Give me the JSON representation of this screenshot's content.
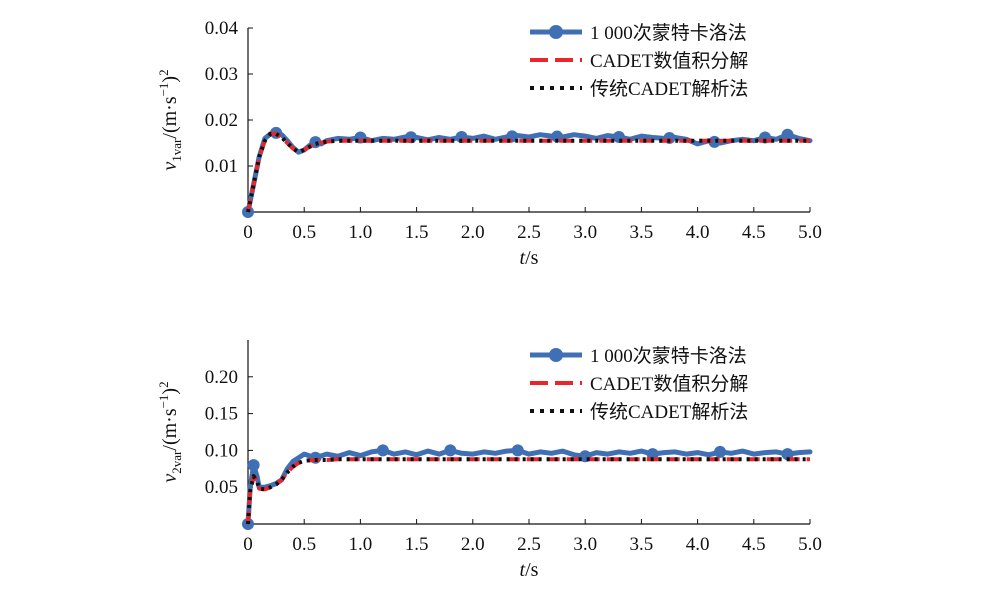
{
  "colors": {
    "monte_carlo": "#3f6fb5",
    "cadet_numeric": "#e8262c",
    "cadet_analytic": "#111111",
    "axis": "#111111"
  },
  "chart_data": [
    {
      "type": "line",
      "xlabel": {
        "italic": "t",
        "rest": "/s"
      },
      "ylabel": {
        "var": "v",
        "sub": "1var",
        "unit": "/(m·s",
        "sup": "−1",
        "close": ")",
        "sup2": "2"
      },
      "xlim": [
        0,
        5
      ],
      "ylim": [
        0,
        0.04
      ],
      "xticks": [
        0,
        0.5,
        1.0,
        1.5,
        2.0,
        2.5,
        3.0,
        3.5,
        4.0,
        4.5,
        5.0
      ],
      "xtick_labels": [
        "0",
        "0.5",
        "1.0",
        "1.5",
        "2.0",
        "2.5",
        "3.0",
        "3.5",
        "4.0",
        "4.5",
        "5.0"
      ],
      "yticks": [
        0.01,
        0.02,
        0.03,
        0.04
      ],
      "ytick_labels": [
        "0.01",
        "0.02",
        "0.03",
        "0.04"
      ],
      "legend": "top-right",
      "grid": false,
      "series": [
        {
          "name": "1 000次蒙特卡洛法",
          "style": "line-marker",
          "x": [
            0,
            0.05,
            0.1,
            0.15,
            0.2,
            0.25,
            0.3,
            0.35,
            0.4,
            0.45,
            0.5,
            0.55,
            0.6,
            0.65,
            0.7,
            0.8,
            0.9,
            1.0,
            1.1,
            1.2,
            1.3,
            1.4,
            1.5,
            1.6,
            1.7,
            1.8,
            1.9,
            2.0,
            2.1,
            2.2,
            2.3,
            2.4,
            2.5,
            2.6,
            2.7,
            2.8,
            2.9,
            3.0,
            3.1,
            3.2,
            3.3,
            3.4,
            3.5,
            3.6,
            3.7,
            3.8,
            3.9,
            4.0,
            4.1,
            4.2,
            4.3,
            4.4,
            4.5,
            4.6,
            4.7,
            4.8,
            4.9,
            5.0
          ],
          "y": [
            0,
            0.006,
            0.012,
            0.016,
            0.017,
            0.0172,
            0.0168,
            0.0155,
            0.014,
            0.013,
            0.0135,
            0.0145,
            0.0152,
            0.0148,
            0.0155,
            0.016,
            0.0158,
            0.0162,
            0.0155,
            0.016,
            0.0158,
            0.0163,
            0.0162,
            0.0157,
            0.0162,
            0.0158,
            0.0163,
            0.016,
            0.0165,
            0.0158,
            0.0163,
            0.0166,
            0.0163,
            0.0168,
            0.0165,
            0.0163,
            0.0168,
            0.0165,
            0.016,
            0.0166,
            0.0163,
            0.0158,
            0.0165,
            0.0162,
            0.016,
            0.0162,
            0.0158,
            0.0148,
            0.0155,
            0.015,
            0.0155,
            0.0158,
            0.0155,
            0.0162,
            0.0158,
            0.0168,
            0.016,
            0.0155
          ],
          "markers_x": [
            0,
            0.25,
            0.6,
            1.0,
            1.45,
            1.9,
            2.35,
            2.75,
            3.3,
            3.75,
            4.15,
            4.6,
            4.8
          ]
        },
        {
          "name": "CADET数值积分解",
          "style": "dashed",
          "x": [
            0,
            0.05,
            0.1,
            0.15,
            0.2,
            0.25,
            0.3,
            0.35,
            0.4,
            0.45,
            0.5,
            0.55,
            0.6,
            0.7,
            0.8,
            0.9,
            1.0,
            1.2,
            1.5,
            2.0,
            3.0,
            4.0,
            5.0
          ],
          "y": [
            0,
            0.006,
            0.012,
            0.0155,
            0.017,
            0.017,
            0.0162,
            0.015,
            0.0138,
            0.013,
            0.0135,
            0.0142,
            0.0148,
            0.0153,
            0.0155,
            0.0155,
            0.0155,
            0.0155,
            0.0155,
            0.0155,
            0.0155,
            0.0155,
            0.0155
          ]
        },
        {
          "name": "传统CADET解析法",
          "style": "dotted",
          "x": [
            0,
            0.05,
            0.1,
            0.15,
            0.2,
            0.25,
            0.3,
            0.35,
            0.4,
            0.45,
            0.5,
            0.55,
            0.6,
            0.7,
            0.8,
            0.9,
            1.0,
            1.2,
            1.5,
            2.0,
            3.0,
            4.0,
            5.0
          ],
          "y": [
            0,
            0.006,
            0.012,
            0.0155,
            0.017,
            0.017,
            0.0162,
            0.015,
            0.0138,
            0.013,
            0.0135,
            0.0142,
            0.0148,
            0.0153,
            0.0155,
            0.0155,
            0.0155,
            0.0155,
            0.0155,
            0.0155,
            0.0155,
            0.0155,
            0.0155
          ]
        }
      ]
    },
    {
      "type": "line",
      "xlabel": {
        "italic": "t",
        "rest": "/s"
      },
      "ylabel": {
        "var": "v",
        "sub": "2var",
        "unit": "/(m·s",
        "sup": "−1",
        "close": ")",
        "sup2": "2"
      },
      "xlim": [
        0,
        5
      ],
      "ylim": [
        0,
        0.25
      ],
      "xticks": [
        0,
        0.5,
        1.0,
        1.5,
        2.0,
        2.5,
        3.0,
        3.5,
        4.0,
        4.5,
        5.0
      ],
      "xtick_labels": [
        "0",
        "0.5",
        "1.0",
        "1.5",
        "2.0",
        "2.5",
        "3.0",
        "3.5",
        "4.0",
        "4.5",
        "5.0"
      ],
      "yticks": [
        0.05,
        0.1,
        0.15,
        0.2
      ],
      "ytick_labels": [
        "0.05",
        "0.10",
        "0.15",
        "0.20"
      ],
      "legend": "top-right",
      "grid": false,
      "series": [
        {
          "name": "1 000次蒙特卡洛法",
          "style": "line-marker",
          "x": [
            0,
            0.02,
            0.05,
            0.08,
            0.1,
            0.15,
            0.2,
            0.25,
            0.3,
            0.35,
            0.4,
            0.45,
            0.5,
            0.6,
            0.7,
            0.8,
            0.9,
            1.0,
            1.1,
            1.2,
            1.3,
            1.4,
            1.5,
            1.6,
            1.7,
            1.8,
            1.9,
            2.0,
            2.1,
            2.2,
            2.3,
            2.4,
            2.5,
            2.6,
            2.7,
            2.8,
            2.9,
            3.0,
            3.1,
            3.2,
            3.3,
            3.4,
            3.5,
            3.6,
            3.7,
            3.8,
            3.9,
            4.0,
            4.1,
            4.2,
            4.3,
            4.4,
            4.5,
            4.6,
            4.7,
            4.8,
            4.9,
            5.0
          ],
          "y": [
            0,
            0.05,
            0.08,
            0.065,
            0.05,
            0.05,
            0.052,
            0.055,
            0.06,
            0.075,
            0.085,
            0.09,
            0.095,
            0.09,
            0.095,
            0.092,
            0.097,
            0.093,
            0.098,
            0.1,
            0.095,
            0.098,
            0.094,
            0.099,
            0.095,
            0.1,
            0.096,
            0.095,
            0.098,
            0.096,
            0.099,
            0.1,
            0.095,
            0.098,
            0.096,
            0.099,
            0.094,
            0.092,
            0.097,
            0.095,
            0.098,
            0.096,
            0.099,
            0.095,
            0.097,
            0.098,
            0.095,
            0.097,
            0.094,
            0.098,
            0.096,
            0.099,
            0.095,
            0.097,
            0.098,
            0.095,
            0.097,
            0.098
          ],
          "markers_x": [
            0,
            0.05,
            0.6,
            1.2,
            1.8,
            2.4,
            3.0,
            3.6,
            4.2,
            4.8
          ]
        },
        {
          "name": "CADET数值积分解",
          "style": "dashed",
          "x": [
            0,
            0.02,
            0.05,
            0.08,
            0.1,
            0.15,
            0.2,
            0.25,
            0.3,
            0.35,
            0.4,
            0.45,
            0.5,
            0.6,
            0.7,
            0.8,
            1.0,
            1.5,
            2.0,
            3.0,
            4.0,
            5.0
          ],
          "y": [
            0,
            0.045,
            0.065,
            0.058,
            0.048,
            0.047,
            0.05,
            0.054,
            0.06,
            0.07,
            0.078,
            0.083,
            0.086,
            0.087,
            0.087,
            0.088,
            0.088,
            0.088,
            0.088,
            0.088,
            0.088,
            0.088
          ]
        },
        {
          "name": "传统CADET解析法",
          "style": "dotted",
          "x": [
            0,
            0.02,
            0.05,
            0.08,
            0.1,
            0.15,
            0.2,
            0.25,
            0.3,
            0.35,
            0.4,
            0.45,
            0.5,
            0.6,
            0.7,
            0.8,
            1.0,
            1.5,
            2.0,
            3.0,
            4.0,
            5.0
          ],
          "y": [
            0,
            0.045,
            0.065,
            0.058,
            0.048,
            0.047,
            0.05,
            0.054,
            0.06,
            0.07,
            0.078,
            0.083,
            0.086,
            0.087,
            0.087,
            0.088,
            0.088,
            0.088,
            0.088,
            0.088,
            0.088,
            0.088
          ]
        }
      ]
    }
  ]
}
